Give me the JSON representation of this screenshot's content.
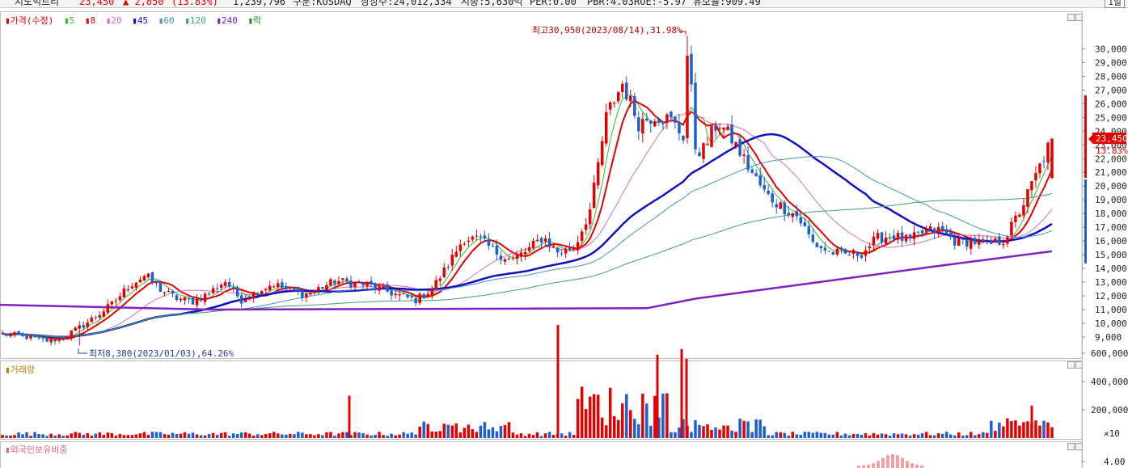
{
  "header": {
    "name": "지노믹트리",
    "price": "23,450",
    "change": "▲ 2,850",
    "change_pct": "(13.83%)",
    "volume": "1,239,796",
    "market": "구분:KOSDAQ",
    "shares": "상장수:24,012,334",
    "mktcap": "시총:5,630억",
    "per": "PER:0.00",
    "pbr": "PBR:4.03",
    "roe": "ROE:-5.97",
    "float": "유보율:909.49",
    "period_button": "1일"
  },
  "price_panel": {
    "legend": {
      "price": "가격(수정)",
      "ma5": "5",
      "ma8": "8",
      "ma20": "20",
      "ma45": "45",
      "ma60": "60",
      "ma120": "120",
      "ma240": "240",
      "rak": "락"
    },
    "high_annotation": "최고30,950(2023/08/14),31.98%",
    "low_annotation": "최저8,380(2023/01/03),64.26%",
    "current_price_tag": "23,450",
    "current_pct_tag": "13.83%",
    "y_ticks": [
      "30,000",
      "29,000",
      "28,000",
      "27,000",
      "26,000",
      "25,000",
      "24,000",
      "23,000",
      "22,000",
      "21,000",
      "20,000",
      "19,000",
      "18,000",
      "17,000",
      "16,000",
      "15,000",
      "14,000",
      "13,000",
      "12,000",
      "11,000",
      "10,000",
      "9,000"
    ]
  },
  "volume_panel": {
    "title": "거래량",
    "y_ticks": [
      "600,000",
      "400,000",
      "200,000"
    ],
    "unit": "×10"
  },
  "foreign_panel": {
    "title": "외국인보유비중",
    "y_ticks": [
      "4.00"
    ]
  },
  "colors": {
    "up": "#e60000",
    "down": "#1d5fcf",
    "ma5": "#2fbf2f",
    "ma8": "#e60000",
    "ma20": "#d070c0",
    "ma45": "#1010c0",
    "ma60": "#4a90c0",
    "ma120": "#40a070",
    "ma240": "#8020c0"
  },
  "chart_data": {
    "type": "candlestick",
    "y_range": [
      8000,
      31000
    ],
    "volume_range": [
      0,
      800000
    ],
    "high": {
      "value": 30950,
      "date": "2023/08/14"
    },
    "low": {
      "value": 8380,
      "date": "2023/01/03"
    },
    "last": {
      "close": 23450,
      "change": 2850,
      "change_pct": 13.83,
      "volume": 1239796
    },
    "series": [
      {
        "name": "가격(수정)",
        "close_trend": [
          9200,
          9100,
          8900,
          8700,
          9100,
          9800,
          10600,
          11500,
          12800,
          13500,
          12400,
          11800,
          11600,
          12200,
          13100,
          11700,
          12300,
          12900,
          12400,
          12100,
          12600,
          13100,
          12900,
          12800,
          12400,
          12000,
          11700,
          12500,
          14200,
          16200,
          16100,
          15200,
          14600,
          15300,
          16300,
          15100,
          15600,
          18400,
          25200,
          27500,
          24600,
          25200,
          24800,
          23400,
          22500,
          24700,
          23200,
          21200,
          19400,
          18500,
          17800,
          15800,
          15200,
          15000,
          15100,
          16200,
          16400,
          16000,
          16700,
          16800,
          15900,
          16000,
          15700,
          16100,
          18200,
          20800,
          23450
        ]
      },
      {
        "name": "5"
      },
      {
        "name": "8"
      },
      {
        "name": "20"
      },
      {
        "name": "45"
      },
      {
        "name": "60"
      },
      {
        "name": "120"
      },
      {
        "name": "240"
      }
    ]
  }
}
